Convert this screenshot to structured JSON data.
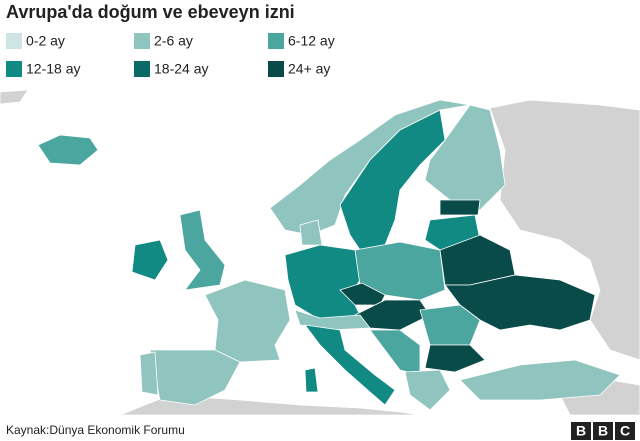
{
  "header": {
    "title": "Avrupa'da doğum ve ebeveyn izni"
  },
  "legend": {
    "items": [
      {
        "label": "0-2 ay",
        "color": "#cfe5e3"
      },
      {
        "label": "2-6 ay",
        "color": "#8fc4bf"
      },
      {
        "label": "6-12 ay",
        "color": "#4ba6a0"
      },
      {
        "label": "12-18 ay",
        "color": "#128a84"
      },
      {
        "label": "18-24 ay",
        "color": "#0b6a66"
      },
      {
        "label": "24+ ay",
        "color": "#094b48"
      }
    ]
  },
  "footer": {
    "source": "Kaynak:Dünya Ekonomik Forumu",
    "logo": [
      "B",
      "B",
      "C"
    ]
  }
}
